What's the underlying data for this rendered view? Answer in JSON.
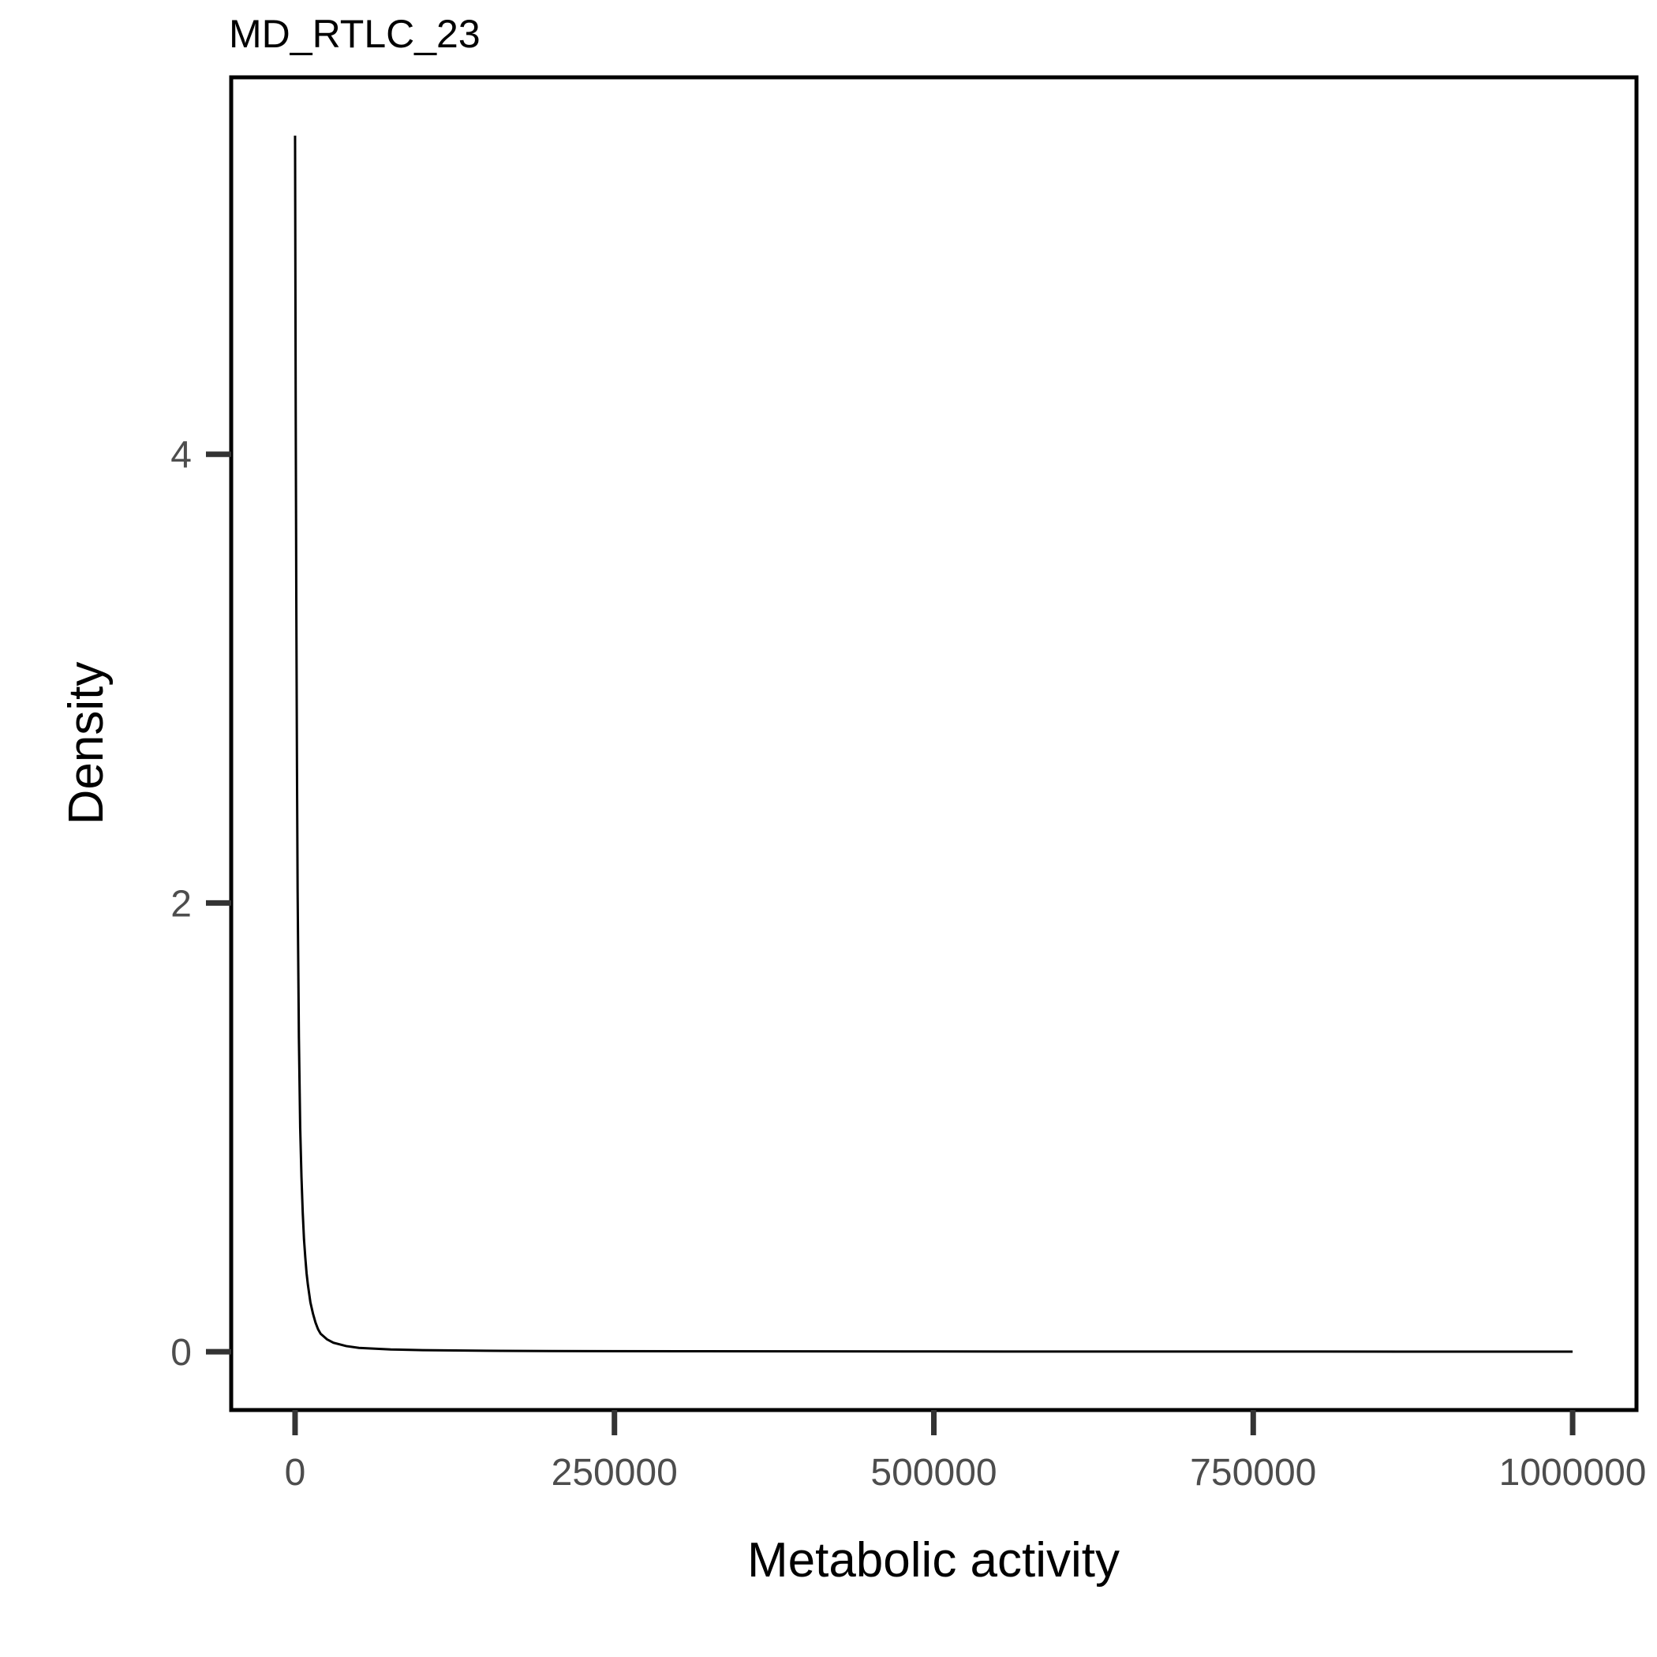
{
  "chart_data": {
    "type": "line",
    "title": "MD_RTLC_23",
    "xlabel": "Metabolic activity",
    "ylabel": "Density",
    "xlim": [
      -50000,
      1050000
    ],
    "ylim": [
      -0.26,
      5.68
    ],
    "x_ticks": [
      0,
      250000,
      500000,
      750000,
      1000000
    ],
    "x_tick_labels": [
      "0",
      "250000",
      "500000",
      "750000",
      "1000000"
    ],
    "y_ticks": [
      0,
      2,
      4
    ],
    "y_tick_labels": [
      "0",
      "2",
      "4"
    ],
    "grid": false,
    "legend": "none",
    "line_color": "#000000",
    "series": [
      {
        "x": [
          0,
          500,
          1000,
          1500,
          2000,
          3000,
          4000,
          5000,
          6000,
          7000,
          8000,
          9000,
          10000,
          11000,
          12000,
          14000,
          16000,
          18000,
          20000,
          25000,
          30000,
          40000,
          50000,
          75000,
          100000,
          150000,
          200000,
          300000,
          400000,
          500000,
          600000,
          700000,
          800000,
          900000,
          1000000
        ],
        "y": [
          5.42,
          4.2,
          3.3,
          2.6,
          2.05,
          1.4,
          1.0,
          0.78,
          0.62,
          0.5,
          0.42,
          0.35,
          0.3,
          0.26,
          0.22,
          0.17,
          0.13,
          0.1,
          0.08,
          0.055,
          0.04,
          0.025,
          0.017,
          0.01,
          0.007,
          0.004,
          0.003,
          0.002,
          0.0015,
          0.001,
          0.0008,
          0.0006,
          0.0005,
          0.0004,
          0.0003
        ]
      }
    ]
  }
}
